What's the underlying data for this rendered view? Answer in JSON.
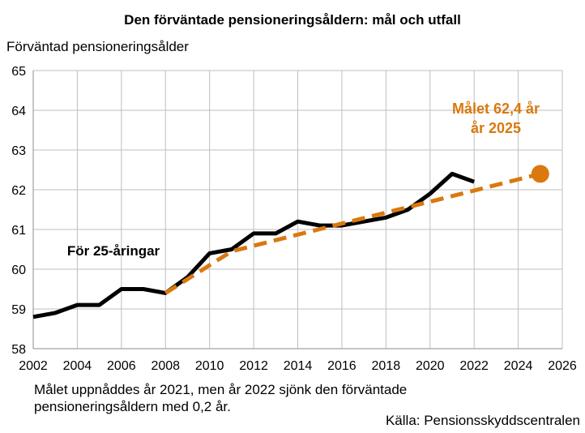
{
  "chart_data": {
    "type": "line",
    "title": "Den förväntade pensioneringsåldern: mål och utfall",
    "ylabel": "Förväntad pensioneringsålder",
    "xlabel": "",
    "xlim": [
      2002,
      2026
    ],
    "ylim": [
      58,
      65
    ],
    "x_ticks": [
      "2002",
      "2004",
      "2006",
      "2008",
      "2010",
      "2012",
      "2014",
      "2016",
      "2018",
      "2020",
      "2022",
      "2024",
      "2026"
    ],
    "y_ticks": [
      "58",
      "59",
      "60",
      "61",
      "62",
      "63",
      "64",
      "65"
    ],
    "grid": true,
    "series": [
      {
        "role": "outcome",
        "color": "#000000",
        "style": "solid",
        "x": [
          2002,
          2003,
          2004,
          2005,
          2006,
          2007,
          2008,
          2009,
          2010,
          2011,
          2012,
          2013,
          2014,
          2015,
          2016,
          2017,
          2018,
          2019,
          2020,
          2021,
          2022
        ],
        "y": [
          58.8,
          58.9,
          59.1,
          59.1,
          59.5,
          59.5,
          59.4,
          59.8,
          60.4,
          60.5,
          60.9,
          60.9,
          61.2,
          61.1,
          61.1,
          61.2,
          61.3,
          61.5,
          61.9,
          62.4,
          62.2
        ]
      },
      {
        "role": "target",
        "color": "#d9790f",
        "style": "dashed",
        "x": [
          2008,
          2011,
          2016,
          2020,
          2025
        ],
        "y": [
          59.4,
          60.45,
          61.15,
          61.7,
          62.4
        ]
      }
    ],
    "target_marker": {
      "x": 2025,
      "y": 62.4,
      "color": "#d9790f"
    },
    "annotations": {
      "outcome_label": "För 25-åringar",
      "target_label_line1": "Målet 62,4 år",
      "target_label_line2": "år 2025"
    }
  },
  "note_text": "Målet uppnåddes år 2021, men år 2022 sjönk den förväntade pensioneringsåldern med 0,2 år.",
  "source_text": "Källa: Pensionsskyddscentralen"
}
